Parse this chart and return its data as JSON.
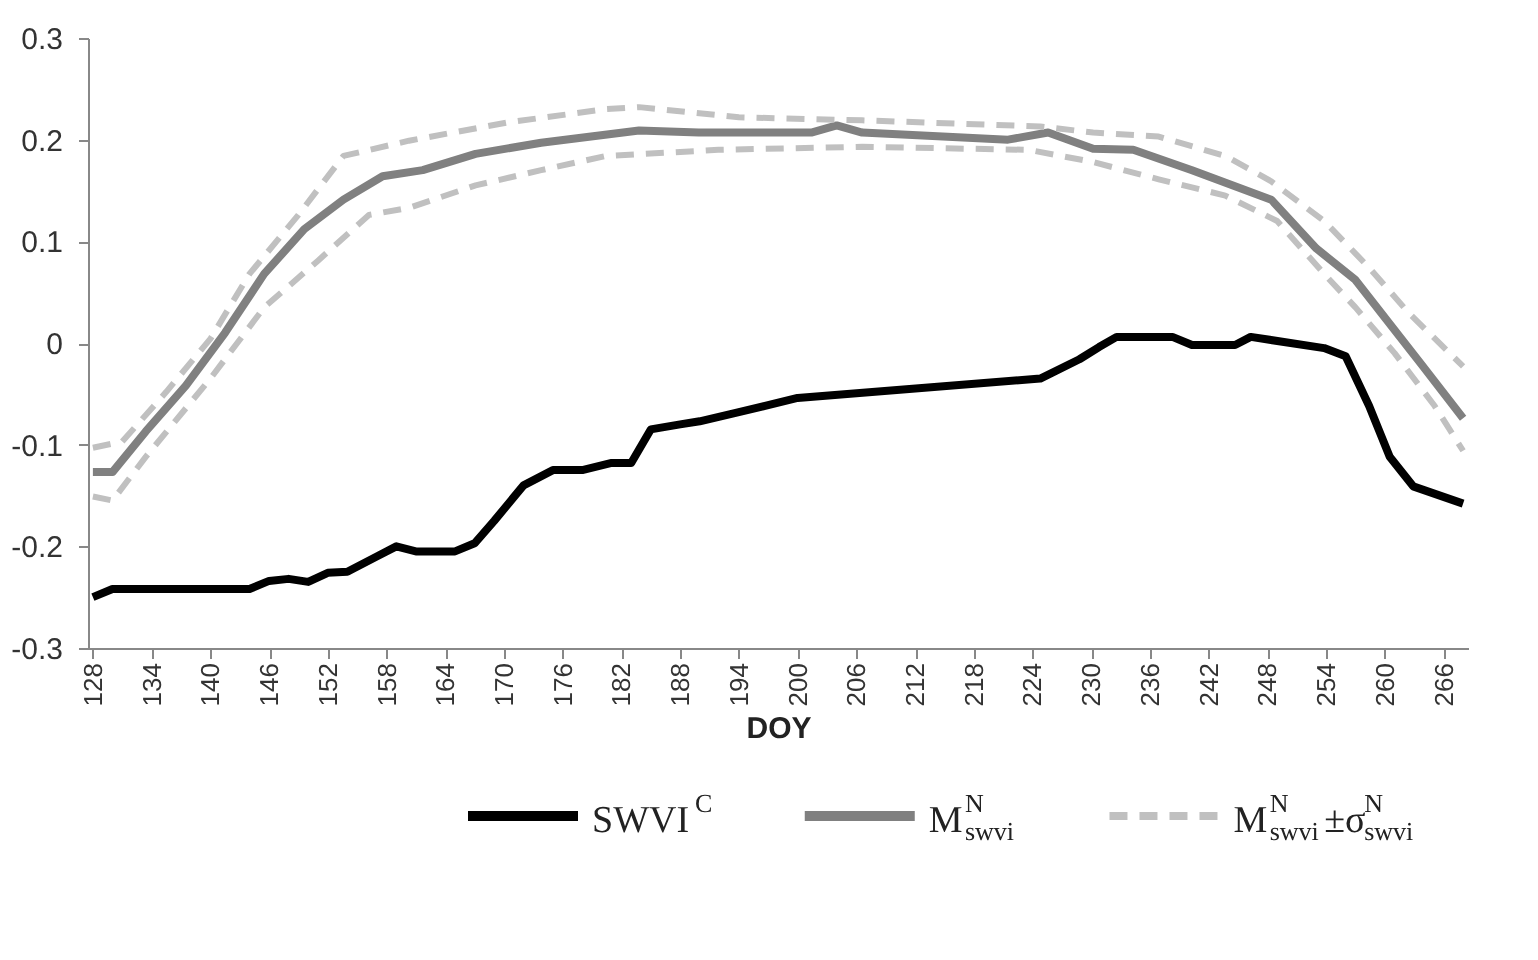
{
  "chart_data": {
    "type": "line",
    "xlabel": "DOY",
    "xlim": [
      127.5,
      268.5
    ],
    "xticks": [
      128,
      134,
      140,
      146,
      152,
      158,
      164,
      170,
      176,
      182,
      188,
      194,
      200,
      206,
      212,
      218,
      224,
      230,
      236,
      242,
      248,
      254,
      260,
      266
    ],
    "ylim": [
      -0.3,
      0.3
    ],
    "yticks": [
      -0.3,
      -0.2,
      -0.1,
      0,
      0.1,
      0.2,
      0.3
    ],
    "grid": false,
    "legend": "bottom",
    "marker": "none",
    "series": [
      {
        "name": "SWVI$^{C}$",
        "color": "#000000",
        "line_style": "solid",
        "x": [
          128,
          130,
          144,
          146,
          148,
          150,
          152,
          154,
          157,
          159,
          161,
          165,
          167,
          169,
          172,
          175,
          178,
          181,
          183,
          185,
          188,
          190,
          194,
          200,
          224.8,
          228.8,
          230.8,
          232.6,
          238.3,
          240.3,
          244.7,
          246.3,
          253.8,
          256,
          258.4,
          260.5,
          262.9,
          268
        ],
        "values": [
          -0.25,
          -0.242,
          -0.242,
          -0.234,
          -0.232,
          -0.235,
          -0.226,
          -0.225,
          -0.21,
          -0.2,
          -0.205,
          -0.205,
          -0.197,
          -0.175,
          -0.14,
          -0.125,
          -0.125,
          -0.118,
          -0.118,
          -0.085,
          -0.08,
          -0.077,
          -0.068,
          -0.054,
          -0.035,
          -0.016,
          -0.004,
          0.006,
          0.006,
          -0.002,
          -0.002,
          0.006,
          -0.005,
          -0.013,
          -0.062,
          -0.112,
          -0.141,
          -0.158
        ]
      },
      {
        "name": "M$^{N}$$_{swvi}$",
        "color": "#808080",
        "line_style": "solid",
        "x": [
          128,
          130,
          133.4,
          137.5,
          141.5,
          145.5,
          149.6,
          153.6,
          157.6,
          161.7,
          167.1,
          173.8,
          183.8,
          189.9,
          201.4,
          204,
          206.6,
          221.5,
          225.6,
          230.2,
          234.3,
          240.3,
          248.4,
          253,
          257,
          263.9,
          268
        ],
        "values": [
          -0.127,
          -0.127,
          -0.087,
          -0.042,
          0.01,
          0.068,
          0.112,
          0.141,
          0.164,
          0.17,
          0.186,
          0.197,
          0.209,
          0.207,
          0.207,
          0.214,
          0.207,
          0.2,
          0.207,
          0.191,
          0.19,
          0.17,
          0.141,
          0.093,
          0.062,
          -0.023,
          -0.074
        ]
      },
      {
        "name": "M$^{N}$$_{swvi}$±σ$^{N}$$_{swvi}$",
        "color": "#c0c0c0",
        "line_style": "dashed",
        "x": [
          128,
          131,
          135.5,
          140,
          144,
          149,
          153.6,
          160.3,
          170.4,
          180.4,
          183.8,
          194,
          206.6,
          224.8,
          230.2,
          236.9,
          243.7,
          248.4,
          253.8,
          258.4,
          262.5,
          268
        ],
        "values": [
          -0.103,
          -0.097,
          -0.048,
          0.004,
          0.068,
          0.126,
          0.184,
          0.199,
          0.217,
          0.23,
          0.232,
          0.222,
          0.219,
          0.213,
          0.207,
          0.203,
          0.184,
          0.159,
          0.12,
          0.074,
          0.029,
          -0.023
        ]
      },
      {
        "color": "#c0c0c0",
        "line_style": "dashed",
        "x": [
          128,
          130,
          133.4,
          140,
          145.5,
          151,
          156.2,
          160.3,
          167.1,
          173.8,
          180.4,
          191.9,
          196.5,
          206.6,
          223.6,
          230.2,
          236.9,
          243.7,
          249,
          253.8,
          257,
          261,
          265.1,
          268
        ],
        "values": [
          -0.151,
          -0.155,
          -0.112,
          -0.035,
          0.035,
          0.081,
          0.126,
          0.133,
          0.155,
          0.17,
          0.184,
          0.19,
          0.191,
          0.193,
          0.19,
          0.178,
          0.161,
          0.145,
          0.12,
          0.068,
          0.035,
          -0.01,
          -0.062,
          -0.106
        ]
      }
    ]
  }
}
